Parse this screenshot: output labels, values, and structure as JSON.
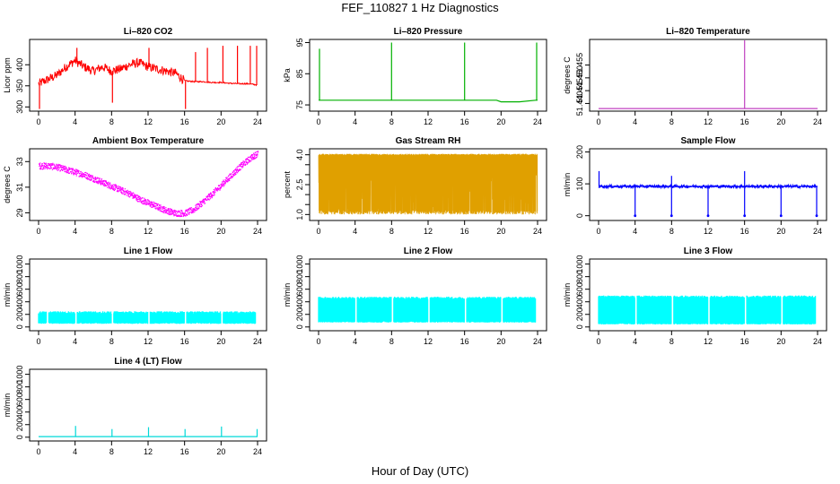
{
  "title": "FEF_110827  1 Hz Diagnostics",
  "x_axis_title": "Hour of Day (UTC)",
  "chart_data": [
    {
      "type": "line",
      "title": "Li–820 CO2",
      "ylabel": "Licor ppm",
      "xlim": [
        0,
        24
      ],
      "x_ticks": [
        0,
        4,
        8,
        12,
        16,
        20,
        24
      ],
      "x_tick_labels": [
        "0",
        "4",
        "8",
        "12",
        "16",
        "20",
        "24"
      ],
      "ylim": [
        290,
        460
      ],
      "y_ticks": [
        300,
        350,
        400
      ],
      "y_tick_labels": [
        "300",
        "350",
        "400"
      ],
      "color": "#ff0000",
      "series": [
        {
          "x": [
            0,
            1,
            2,
            3,
            4,
            5,
            6,
            7,
            8,
            9,
            10,
            11,
            12,
            13,
            14,
            15,
            16,
            17,
            18,
            19,
            20,
            21,
            22,
            23,
            24
          ],
          "y": [
            355,
            365,
            375,
            395,
            410,
            395,
            385,
            395,
            385,
            390,
            400,
            405,
            395,
            390,
            385,
            380,
            362,
            360,
            360,
            358,
            358,
            356,
            355,
            355,
            352
          ]
        }
      ],
      "spikes": [
        {
          "x": 0.1,
          "y": 295
        },
        {
          "x": 4.2,
          "y": 440
        },
        {
          "x": 8.1,
          "y": 310
        },
        {
          "x": 12.1,
          "y": 440
        },
        {
          "x": 16.1,
          "y": 295
        },
        {
          "x": 17.2,
          "y": 430
        },
        {
          "x": 18.5,
          "y": 440
        },
        {
          "x": 20.2,
          "y": 445
        },
        {
          "x": 21.8,
          "y": 445
        },
        {
          "x": 23.2,
          "y": 445
        },
        {
          "x": 23.9,
          "y": 445
        }
      ]
    },
    {
      "type": "line",
      "title": "Li–820 Pressure",
      "ylabel": "kPa",
      "xlim": [
        0,
        24
      ],
      "x_ticks": [
        0,
        4,
        8,
        12,
        16,
        20,
        24
      ],
      "x_tick_labels": [
        "0",
        "4",
        "8",
        "12",
        "16",
        "20",
        "24"
      ],
      "ylim": [
        73,
        96
      ],
      "y_ticks": [
        75,
        85,
        95
      ],
      "y_tick_labels": [
        "75",
        "85",
        "95"
      ],
      "color": "#00b000",
      "series": [
        {
          "x": [
            0,
            2,
            4,
            6,
            8,
            10,
            12,
            14,
            16,
            18,
            19.5,
            20,
            22,
            23.8,
            24
          ],
          "y": [
            76.5,
            76.5,
            76.5,
            76.5,
            76.5,
            76.5,
            76.5,
            76.5,
            76.5,
            76.5,
            76.5,
            76,
            76,
            76.5,
            76.5
          ]
        }
      ],
      "spikes": [
        {
          "x": 0.1,
          "y": 93
        },
        {
          "x": 8.0,
          "y": 95
        },
        {
          "x": 16.0,
          "y": 95
        },
        {
          "x": 23.9,
          "y": 95
        }
      ]
    },
    {
      "type": "line",
      "title": "Li–820 Temperature",
      "ylabel": "degrees C",
      "xlim": [
        0,
        24
      ],
      "x_ticks": [
        0,
        4,
        8,
        12,
        16,
        20,
        24
      ],
      "x_tick_labels": [
        "0",
        "4",
        "8",
        "12",
        "16",
        "20",
        "24"
      ],
      "ylim": [
        51.437,
        51.465
      ],
      "y_ticks": [
        51.44,
        51.445,
        51.45,
        51.455
      ],
      "y_tick_labels": [
        "51.440",
        "51.445",
        "51.450",
        "51.455"
      ],
      "color": "#c040c0",
      "series": [
        {
          "x": [
            0,
            24
          ],
          "y": [
            51.438,
            51.438
          ]
        }
      ],
      "spikes": [
        {
          "x": 16.0,
          "y": 51.465
        }
      ]
    },
    {
      "type": "scatter",
      "title": "Ambient Box Temperature",
      "ylabel": "degrees C",
      "xlim": [
        0,
        24
      ],
      "x_ticks": [
        0,
        4,
        8,
        12,
        16,
        20,
        24
      ],
      "x_tick_labels": [
        "0",
        "4",
        "8",
        "12",
        "16",
        "20",
        "24"
      ],
      "ylim": [
        28.4,
        34.0
      ],
      "y_ticks": [
        29,
        31,
        33
      ],
      "y_tick_labels": [
        "29",
        "31",
        "33"
      ],
      "color": "#ff00ff",
      "series": [
        {
          "x": [
            0,
            1,
            2,
            3,
            4,
            5,
            6,
            7,
            8,
            9,
            10,
            11,
            12,
            13,
            14,
            15,
            16,
            17,
            18,
            19,
            20,
            21,
            22,
            23,
            24
          ],
          "y": [
            32.7,
            32.7,
            32.6,
            32.4,
            32.2,
            32.0,
            31.7,
            31.4,
            31.1,
            30.8,
            30.5,
            30.1,
            29.8,
            29.5,
            29.2,
            29.0,
            29.0,
            29.3,
            29.9,
            30.5,
            31.2,
            31.9,
            32.6,
            33.2,
            33.7
          ]
        }
      ],
      "spread": 0.25
    },
    {
      "type": "scatter",
      "title": "Gas Stream RH",
      "ylabel": "percent",
      "xlim": [
        0,
        24
      ],
      "x_ticks": [
        0,
        4,
        8,
        12,
        16,
        20,
        24
      ],
      "x_tick_labels": [
        "0",
        "4",
        "8",
        "12",
        "16",
        "20",
        "24"
      ],
      "ylim": [
        0.7,
        4.3
      ],
      "y_ticks": [
        1.0,
        2.5,
        4.0
      ],
      "y_tick_labels": [
        "1.0",
        "2.5",
        "4.0"
      ],
      "y_minor_ticks": [
        1.5,
        2.0,
        3.0,
        3.5
      ],
      "color": "#e0a000",
      "band": {
        "low": 1.0,
        "high": 4.05
      }
    },
    {
      "type": "line",
      "title": "Sample Flow",
      "ylabel": "ml/min",
      "xlim": [
        0,
        24
      ],
      "x_ticks": [
        0,
        4,
        8,
        12,
        16,
        20,
        24
      ],
      "x_tick_labels": [
        "0",
        "4",
        "8",
        "12",
        "16",
        "20",
        "24"
      ],
      "ylim": [
        -15,
        210
      ],
      "y_ticks": [
        0,
        100,
        200
      ],
      "y_tick_labels": [
        "0",
        "100",
        "200"
      ],
      "color": "#0000ff",
      "series": [
        {
          "x": [
            0,
            24
          ],
          "y": [
            92,
            92
          ]
        }
      ],
      "spikes": [
        {
          "x": 0.05,
          "y": 140
        },
        {
          "x": 4.0,
          "y": 0
        },
        {
          "x": 8.0,
          "y": 0
        },
        {
          "x": 8.0,
          "y": 125
        },
        {
          "x": 12.0,
          "y": 0
        },
        {
          "x": 16.0,
          "y": 140
        },
        {
          "x": 16.0,
          "y": 0
        },
        {
          "x": 20.0,
          "y": 0
        },
        {
          "x": 23.9,
          "y": 0
        }
      ]
    },
    {
      "type": "area",
      "title": "Line 1 Flow",
      "ylabel": "ml/min",
      "xlim": [
        0,
        24
      ],
      "x_ticks": [
        0,
        4,
        8,
        12,
        16,
        20,
        24
      ],
      "x_tick_labels": [
        "0",
        "4",
        "8",
        "12",
        "16",
        "20",
        "24"
      ],
      "ylim": [
        -60,
        1080
      ],
      "y_ticks": [
        0,
        200,
        400,
        600,
        800,
        1000
      ],
      "y_tick_labels": [
        "0",
        "200",
        "400",
        "600",
        "800",
        "1000"
      ],
      "color": "#00ffff",
      "band": {
        "low": 50,
        "high": 250
      },
      "gaps": [
        1.0,
        4.1,
        8.1,
        12.1,
        16.1,
        20.1,
        23.9
      ]
    },
    {
      "type": "area",
      "title": "Line 2 Flow",
      "ylabel": "ml/min",
      "xlim": [
        0,
        24
      ],
      "x_ticks": [
        0,
        4,
        8,
        12,
        16,
        20,
        24
      ],
      "x_tick_labels": [
        "0",
        "4",
        "8",
        "12",
        "16",
        "20",
        "24"
      ],
      "ylim": [
        -60,
        1080
      ],
      "y_ticks": [
        0,
        200,
        400,
        600,
        800,
        1000
      ],
      "y_tick_labels": [
        "0",
        "200",
        "400",
        "600",
        "800",
        "1000"
      ],
      "color": "#00ffff",
      "band": {
        "low": 70,
        "high": 480
      },
      "gaps": [
        4.1,
        8.1,
        12.1,
        16.1,
        20.1,
        23.9
      ]
    },
    {
      "type": "area",
      "title": "Line 3 Flow",
      "ylabel": "ml/min",
      "xlim": [
        0,
        24
      ],
      "x_ticks": [
        0,
        4,
        8,
        12,
        16,
        20,
        24
      ],
      "x_tick_labels": [
        "0",
        "4",
        "8",
        "12",
        "16",
        "20",
        "24"
      ],
      "ylim": [
        -60,
        1080
      ],
      "y_ticks": [
        0,
        200,
        400,
        600,
        800,
        1000
      ],
      "y_tick_labels": [
        "0",
        "200",
        "400",
        "600",
        "800",
        "1000"
      ],
      "color": "#00ffff",
      "band": {
        "low": 40,
        "high": 500
      },
      "gaps": [
        4.1,
        8.1,
        12.1,
        16.1,
        20.1,
        23.9
      ]
    },
    {
      "type": "line",
      "title": "Line 4 (LT) Flow",
      "ylabel": "ml/min",
      "xlim": [
        0,
        24
      ],
      "x_ticks": [
        0,
        4,
        8,
        12,
        16,
        20,
        24
      ],
      "x_tick_labels": [
        "0",
        "4",
        "8",
        "12",
        "16",
        "20",
        "24"
      ],
      "ylim": [
        -60,
        1080
      ],
      "y_ticks": [
        0,
        200,
        400,
        600,
        800,
        1000
      ],
      "y_tick_labels": [
        "0",
        "200",
        "400",
        "600",
        "800",
        "1000"
      ],
      "color": "#00d8d8",
      "series": [
        {
          "x": [
            0,
            24
          ],
          "y": [
            10,
            10
          ]
        }
      ],
      "spikes": [
        {
          "x": 4.05,
          "y": 180
        },
        {
          "x": 8.05,
          "y": 130
        },
        {
          "x": 12.05,
          "y": 160
        },
        {
          "x": 16.05,
          "y": 130
        },
        {
          "x": 20.05,
          "y": 170
        },
        {
          "x": 23.95,
          "y": 130
        }
      ]
    }
  ]
}
